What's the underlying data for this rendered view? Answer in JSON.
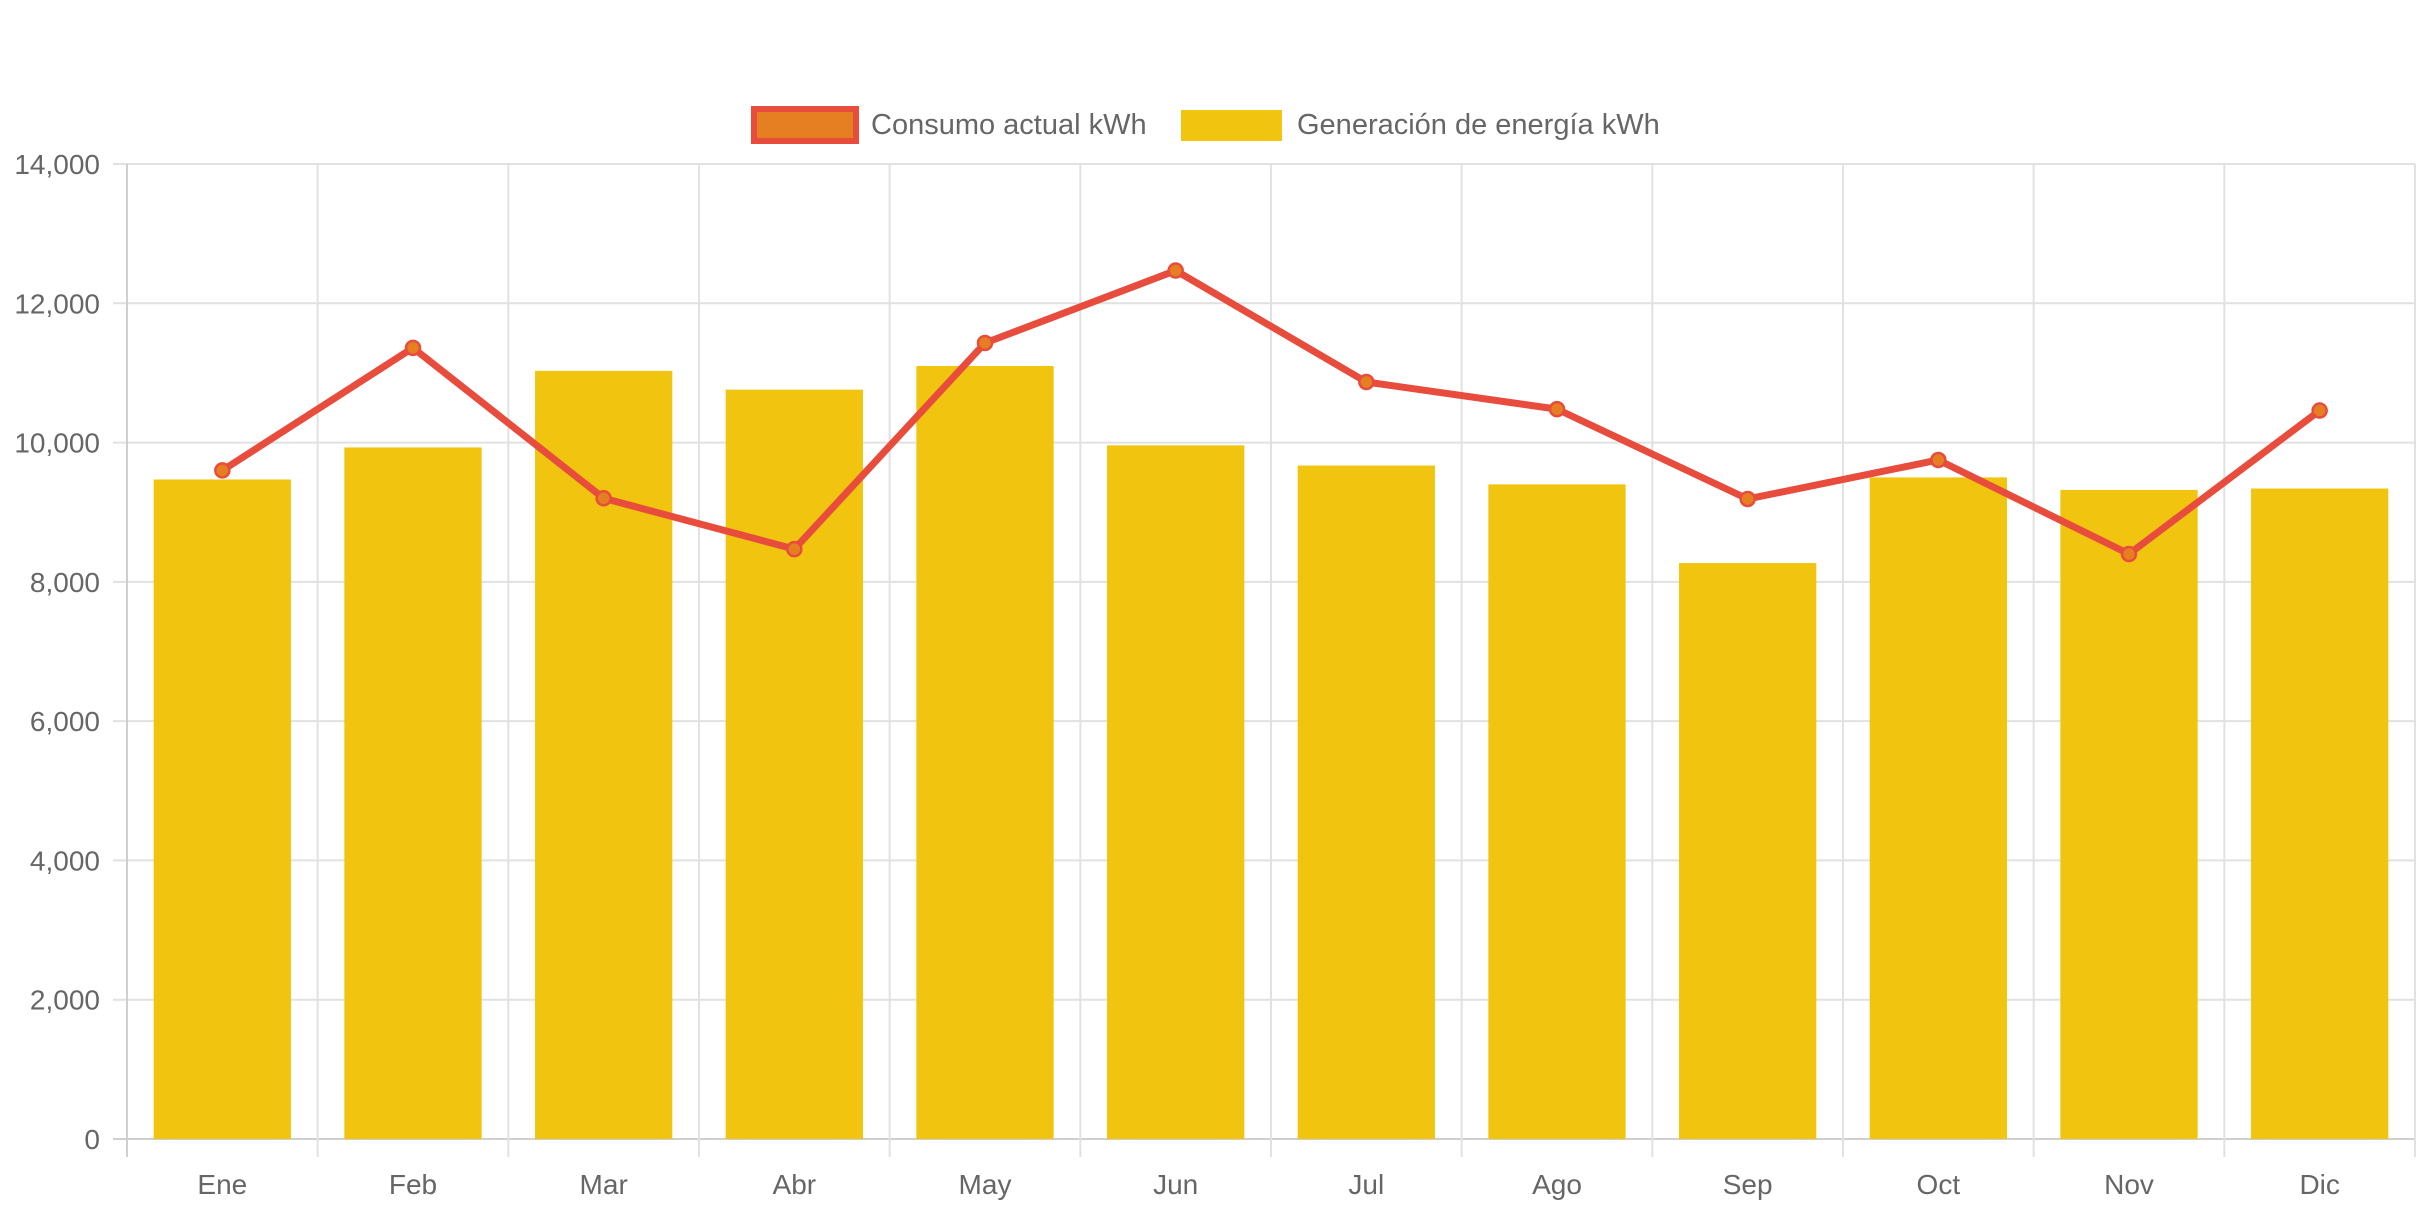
{
  "chart_data": {
    "type": "bar",
    "title": "",
    "xlabel": "",
    "ylabel": "",
    "ylim": [
      0,
      14000
    ],
    "yticks": [
      0,
      2000,
      4000,
      6000,
      8000,
      10000,
      12000,
      14000
    ],
    "ytick_labels": [
      "0",
      "2,000",
      "4,000",
      "6,000",
      "8,000",
      "10,000",
      "12,000",
      "14,000"
    ],
    "grid": true,
    "legend_position": "top-center",
    "categories": [
      "Ene",
      "Feb",
      "Mar",
      "Abr",
      "May",
      "Jun",
      "Jul",
      "Ago",
      "Sep",
      "Oct",
      "Nov",
      "Dic"
    ],
    "series": [
      {
        "name": "Consumo actual kWh",
        "type": "line",
        "color": "#E74C3C",
        "point_fill": "#E67E22",
        "values": [
          9600,
          11360,
          9200,
          8470,
          11430,
          12470,
          10870,
          10480,
          9190,
          9750,
          8400,
          10460
        ]
      },
      {
        "name": "Generación de energía kWh",
        "type": "bar",
        "color": "#F1C40F",
        "values": [
          9470,
          9930,
          11030,
          10760,
          11100,
          9960,
          9670,
          9400,
          8270,
          9500,
          9320,
          9340
        ]
      }
    ]
  }
}
